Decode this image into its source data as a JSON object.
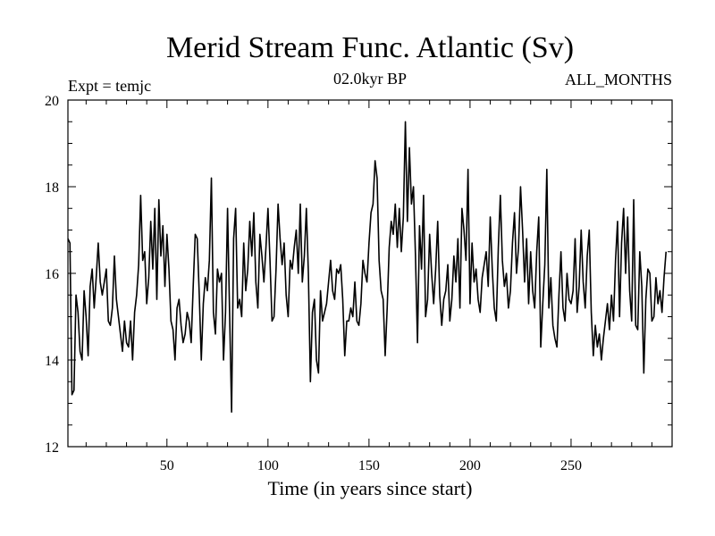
{
  "chart_data": {
    "type": "line",
    "title": "Merid Stream Func. Atlantic (Sv)",
    "subtitle_left": "Expt = temjc",
    "subtitle_center": "02.0kyr BP",
    "subtitle_right": "ALL_MONTHS",
    "xlabel": "Time (in years since start)",
    "ylabel": "",
    "xlim": [
      1,
      300
    ],
    "ylim": [
      12,
      20
    ],
    "xticks": [
      50,
      100,
      150,
      200,
      250
    ],
    "yticks": [
      12,
      14,
      16,
      18,
      20
    ],
    "grid": false,
    "series": [
      {
        "name": "Merid Stream Func. Atlantic",
        "color": "#000000",
        "x_start": 1,
        "x_step": 1,
        "values": [
          16.8,
          16.7,
          13.2,
          13.3,
          15.5,
          15.1,
          14.2,
          14.0,
          15.6,
          15.0,
          14.1,
          15.7,
          16.1,
          15.2,
          15.9,
          16.7,
          15.8,
          15.5,
          15.8,
          16.1,
          14.9,
          14.8,
          15.2,
          16.4,
          15.4,
          15.0,
          14.6,
          14.2,
          14.9,
          14.4,
          14.3,
          14.9,
          14.0,
          15.1,
          15.5,
          16.2,
          17.8,
          16.3,
          16.5,
          15.3,
          15.9,
          17.2,
          16.1,
          17.5,
          15.4,
          17.7,
          16.4,
          17.1,
          15.7,
          16.9,
          16.1,
          14.9,
          14.7,
          14.0,
          15.2,
          15.4,
          14.8,
          14.4,
          14.6,
          15.1,
          14.9,
          14.4,
          15.7,
          16.9,
          16.8,
          15.5,
          14.0,
          15.3,
          15.9,
          15.6,
          16.3,
          18.2,
          15.1,
          14.6,
          16.1,
          15.8,
          16.0,
          14.0,
          15.1,
          17.5,
          15.1,
          12.8,
          16.8,
          17.5,
          15.2,
          15.4,
          15.0,
          16.7,
          15.6,
          16.1,
          17.2,
          16.4,
          17.4,
          15.8,
          15.2,
          16.9,
          16.4,
          15.8,
          16.6,
          17.5,
          16.3,
          14.9,
          15.0,
          16.1,
          17.6,
          16.8,
          16.2,
          16.7,
          15.5,
          15.0,
          16.3,
          16.1,
          16.6,
          17.0,
          16.0,
          17.6,
          15.8,
          16.4,
          17.5,
          16.0,
          13.5,
          15.1,
          15.4,
          14.0,
          13.7,
          15.6,
          14.9,
          15.1,
          15.3,
          15.8,
          16.3,
          15.6,
          15.4,
          16.1,
          16.0,
          16.2,
          15.4,
          14.1,
          14.9,
          14.9,
          15.2,
          15.0,
          15.8,
          14.9,
          14.8,
          15.3,
          16.3,
          16.0,
          15.8,
          16.7,
          17.4,
          17.6,
          18.6,
          18.2,
          16.3,
          15.6,
          15.4,
          14.1,
          15.2,
          16.6,
          17.2,
          16.9,
          17.6,
          16.6,
          17.5,
          16.5,
          17.3,
          19.5,
          17.2,
          18.9,
          17.6,
          18.0,
          16.4,
          14.4,
          17.1,
          16.1,
          17.8,
          15.0,
          15.4,
          16.9,
          16.0,
          15.3,
          16.1,
          17.2,
          15.5,
          14.8,
          15.4,
          15.6,
          16.2,
          14.9,
          15.4,
          16.4,
          15.8,
          16.8,
          15.2,
          17.5,
          17.0,
          16.3,
          18.4,
          15.3,
          16.7,
          15.8,
          16.1,
          15.4,
          15.1,
          15.9,
          16.2,
          16.5,
          15.7,
          17.3,
          16.1,
          15.2,
          14.9,
          16.6,
          17.8,
          16.3,
          15.7,
          16.0,
          15.2,
          15.6,
          16.7,
          17.4,
          16.0,
          16.6,
          18.0,
          17.0,
          15.8,
          16.8,
          15.3,
          16.5,
          15.6,
          15.2,
          16.5,
          17.3,
          14.3,
          15.3,
          16.2,
          18.4,
          15.2,
          15.9,
          14.8,
          14.5,
          14.3,
          15.5,
          16.5,
          15.2,
          14.9,
          16.0,
          15.4,
          15.3,
          15.6,
          16.8,
          15.1,
          15.7,
          17.0,
          15.8,
          15.2,
          16.4,
          17.0,
          15.1,
          14.1,
          14.8,
          14.3,
          14.6,
          14.0,
          14.5,
          14.9,
          15.3,
          14.7,
          15.5,
          14.9,
          16.3,
          17.2,
          15.0,
          16.7,
          17.5,
          16.0,
          17.3,
          15.6,
          14.9,
          17.7,
          14.8,
          14.7,
          16.5,
          15.7,
          13.7,
          15.4,
          16.1,
          16.0,
          14.9,
          15.0,
          15.9,
          15.3,
          15.6,
          15.1,
          15.9,
          16.5
        ]
      }
    ]
  }
}
